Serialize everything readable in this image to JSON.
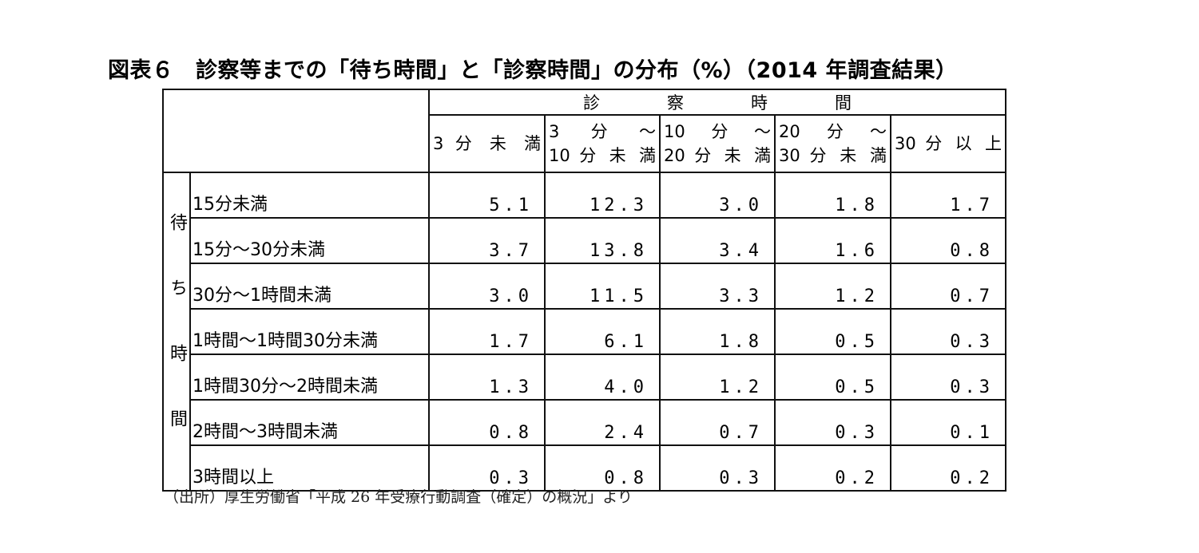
{
  "title": "図表６　診察等までの「待ち時間」と「診察時間」の分布（%）（2014 年調査結果）",
  "table": {
    "column_group": "診　　　　察　　　　時　　　　間",
    "row_group": "待ち時間",
    "columns": [
      [
        "3 分 未 満"
      ],
      [
        "3　 分　 ～",
        "10 分 未 満"
      ],
      [
        "10　分　～",
        "20 分 未 満"
      ],
      [
        "20　分　～",
        "30 分 未 満"
      ],
      [
        "30 分 以 上"
      ]
    ],
    "rows": [
      {
        "label": "15分未満",
        "values": [
          "5.1",
          "12.3",
          "3.0",
          "1.8",
          "1.7"
        ]
      },
      {
        "label": "15分～30分未満",
        "values": [
          "3.7",
          "13.8",
          "3.4",
          "1.6",
          "0.8"
        ]
      },
      {
        "label": "30分～1時間未満",
        "values": [
          "3.0",
          "11.5",
          "3.3",
          "1.2",
          "0.7"
        ]
      },
      {
        "label": "1時間～1時間30分未満",
        "values": [
          "1.7",
          "6.1",
          "1.8",
          "0.5",
          "0.3"
        ]
      },
      {
        "label": "1時間30分～2時間未満",
        "values": [
          "1.3",
          "4.0",
          "1.2",
          "0.5",
          "0.3"
        ]
      },
      {
        "label": "2時間～3時間未満",
        "values": [
          "0.8",
          "2.4",
          "0.7",
          "0.3",
          "0.1"
        ]
      },
      {
        "label": "3時間以上",
        "values": [
          "0.3",
          "0.8",
          "0.3",
          "0.2",
          "0.2"
        ]
      }
    ]
  },
  "source": "（出所）厚生労働省「平成 26 年受療行動調査（確定）の概況」より"
}
